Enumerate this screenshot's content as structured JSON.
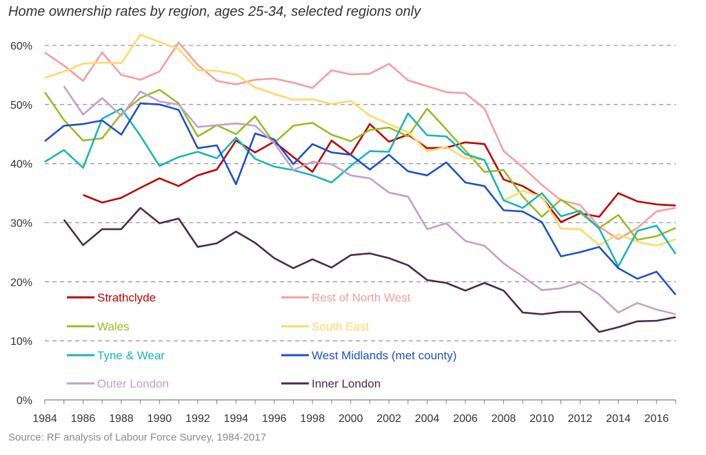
{
  "title": "Home ownership rates by region, ages 25-34, selected regions only",
  "source": "Source: RF analysis of Labour Force Survey, 1984-2017",
  "chart_data": {
    "type": "line",
    "title": "Home ownership rates by region, ages 25-34, selected regions only",
    "xlabel": "",
    "ylabel": "",
    "xlim": [
      1984,
      2017
    ],
    "ylim": [
      0,
      60
    ],
    "y_ticks": [
      "0%",
      "10%",
      "20%",
      "30%",
      "40%",
      "50%",
      "60%"
    ],
    "x_ticks": [
      "1984",
      "1986",
      "1988",
      "1990",
      "1992",
      "1994",
      "1996",
      "1998",
      "2000",
      "2002",
      "2004",
      "2006",
      "2008",
      "2010",
      "2012",
      "2014",
      "2016"
    ],
    "grid": "horizontal dashed",
    "legend_position": "lower-left",
    "x": [
      1984,
      1985,
      1986,
      1987,
      1988,
      1989,
      1990,
      1991,
      1992,
      1993,
      1994,
      1995,
      1996,
      1997,
      1998,
      1999,
      2000,
      2001,
      2002,
      2003,
      2004,
      2005,
      2006,
      2007,
      2008,
      2009,
      2010,
      2011,
      2012,
      2013,
      2014,
      2015,
      2016,
      2017
    ],
    "series": [
      {
        "name": "Strathclyde",
        "color": "#c00000",
        "values": [
          null,
          null,
          34.7,
          33.4,
          34.2,
          35.9,
          37.5,
          36.2,
          38.0,
          39.0,
          43.9,
          41.9,
          43.7,
          41.1,
          38.6,
          43.9,
          41.5,
          46.7,
          43.7,
          44.9,
          42.6,
          42.7,
          43.6,
          43.3,
          37.3,
          36.2,
          34.3,
          30.1,
          31.6,
          31.0,
          35.0,
          33.6,
          33.1,
          32.9
        ]
      },
      {
        "name": "Rest of North West",
        "color": "#f79c9c",
        "values": [
          58.8,
          56.6,
          54.0,
          58.8,
          55.0,
          54.2,
          55.6,
          60.5,
          56.7,
          54.0,
          53.4,
          54.2,
          54.4,
          53.7,
          52.8,
          55.8,
          55.1,
          55.2,
          56.9,
          54.1,
          53.1,
          52.1,
          51.9,
          49.3,
          42.1,
          39.4,
          36.4,
          33.8,
          33.0,
          29.3,
          27.2,
          29.1,
          31.9,
          32.5
        ]
      },
      {
        "name": "Wales",
        "color": "#9bbb21",
        "values": [
          52.1,
          47.4,
          43.9,
          44.3,
          48.4,
          51.1,
          52.5,
          50.2,
          44.6,
          46.5,
          45.0,
          48.0,
          43.5,
          46.4,
          46.9,
          44.9,
          43.8,
          45.7,
          46.1,
          44.6,
          49.3,
          45.8,
          42.2,
          38.6,
          38.9,
          34.4,
          31.0,
          33.9,
          31.7,
          29.1,
          31.3,
          27.1,
          27.7,
          29.1
        ]
      },
      {
        "name": "South East",
        "color": "#ffd966",
        "values": [
          54.5,
          55.6,
          56.9,
          57.1,
          57.0,
          61.8,
          60.6,
          59.4,
          55.8,
          55.7,
          55.1,
          52.9,
          51.8,
          50.8,
          50.9,
          50.1,
          50.6,
          48.1,
          46.7,
          45.3,
          42.1,
          42.8,
          40.9,
          40.6,
          33.7,
          35.4,
          34.4,
          29.0,
          28.9,
          26.2,
          28.0,
          26.8,
          26.1,
          27.2
        ]
      },
      {
        "name": "Tyne & Wear",
        "color": "#17b6b6",
        "values": [
          40.3,
          42.3,
          39.3,
          47.6,
          49.3,
          44.7,
          39.6,
          41.1,
          42.0,
          40.9,
          44.4,
          40.8,
          39.5,
          38.9,
          38.0,
          36.8,
          39.6,
          42.1,
          42.0,
          48.5,
          44.8,
          44.6,
          41.6,
          40.6,
          33.8,
          32.5,
          35.0,
          31.1,
          32.0,
          29.0,
          22.6,
          28.6,
          29.5,
          24.7
        ]
      },
      {
        "name": "West Midlands (met county)",
        "color": "#1f4fc8",
        "values": [
          43.8,
          46.4,
          46.7,
          47.3,
          44.9,
          50.2,
          50.0,
          49.1,
          42.6,
          43.1,
          36.5,
          45.1,
          44.1,
          39.9,
          43.3,
          41.9,
          41.5,
          39.0,
          41.5,
          38.7,
          38.0,
          40.2,
          36.8,
          36.2,
          32.1,
          31.9,
          30.1,
          24.3,
          25.0,
          25.9,
          22.3,
          20.5,
          21.7,
          17.8
        ]
      },
      {
        "name": "Outer London",
        "color": "#c49ec9",
        "values": [
          null,
          53.1,
          48.3,
          51.1,
          48.1,
          52.2,
          50.5,
          50.0,
          46.2,
          46.5,
          46.8,
          46.4,
          43.5,
          38.9,
          40.3,
          39.9,
          38.0,
          37.5,
          35.1,
          34.4,
          28.9,
          29.9,
          26.9,
          26.1,
          23.1,
          20.9,
          18.6,
          18.9,
          19.9,
          17.8,
          14.8,
          16.4,
          15.3,
          14.5
        ]
      },
      {
        "name": "Inner London",
        "color": "#4b2a4a",
        "values": [
          null,
          30.5,
          26.2,
          28.9,
          28.9,
          32.5,
          29.9,
          30.7,
          25.9,
          26.5,
          28.5,
          26.6,
          24.0,
          22.3,
          23.8,
          22.4,
          24.5,
          24.8,
          24.0,
          22.8,
          20.3,
          19.8,
          18.5,
          19.8,
          18.5,
          14.8,
          14.5,
          14.9,
          14.9,
          11.5,
          12.3,
          13.3,
          13.4,
          14.0
        ]
      }
    ]
  }
}
